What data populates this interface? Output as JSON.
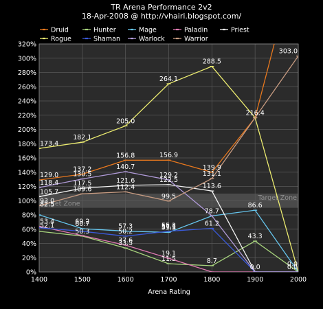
{
  "chart_data": {
    "type": "line",
    "title": "TR Arena Performance 2v2",
    "subtitle": "18-Apr-2008 @ http://vhairi.blogspot.com/",
    "xlabel": "Arena Rating",
    "ylabel": "",
    "x": [
      1400,
      1500,
      1600,
      1700,
      1800,
      1900,
      2000
    ],
    "xlim": [
      1400,
      2000
    ],
    "ylim": [
      0,
      320
    ],
    "yticks": [
      "0%",
      "20%",
      "40%",
      "60%",
      "80%",
      "100%",
      "120%",
      "140%",
      "160%",
      "180%",
      "200%",
      "220%",
      "240%",
      "260%",
      "280%",
      "300%",
      "320%"
    ],
    "xticks": [
      "1400",
      "1500",
      "1600",
      "1700",
      "1800",
      "1900",
      "2000"
    ],
    "grid": true,
    "legend_placement": "top",
    "target_zone": {
      "from": 90,
      "to": 110,
      "label_left": "Target Zone",
      "label_right": "Target Zone"
    },
    "series": [
      {
        "name": "Druid",
        "color": "#e8781e",
        "values": [
          129.0,
          137.2,
          156.8,
          156.9,
          139.9,
          216.4,
          450.0
        ],
        "labels": [
          "129.0",
          "137.2",
          "156.8",
          "156.9",
          "139.9",
          "",
          ""
        ]
      },
      {
        "name": "Hunter",
        "color": "#a6d27c",
        "values": [
          57.0,
          50.3,
          33.5,
          11.5,
          8.7,
          43.3,
          0.0
        ],
        "labels": [
          "",
          "50.3",
          "33.5",
          "11.5",
          "8.7",
          "43.3",
          ""
        ]
      },
      {
        "name": "Mage",
        "color": "#66c6ee",
        "values": [
          80.0,
          60.7,
          57.3,
          55.5,
          78.7,
          86.6,
          0.0
        ],
        "labels": [
          "",
          "60.7",
          "57.3",
          "55.5",
          "78.7",
          "86.6",
          ""
        ]
      },
      {
        "name": "Paladin",
        "color": "#e07ab2",
        "values": [
          64.0,
          51.0,
          37.6,
          19.1,
          0.0,
          0.0,
          0.0
        ],
        "labels": [
          "",
          "",
          "37.6",
          "19.1",
          "",
          "",
          ""
        ]
      },
      {
        "name": "Priest",
        "color": "#f2f2f2",
        "values": [
          105.7,
          117.5,
          121.6,
          122.5,
          113.6,
          0.0,
          0.0
        ],
        "labels": [
          "105.7",
          "117.5",
          "121.6",
          "122.5",
          "113.6",
          "",
          ""
        ]
      },
      {
        "name": "Rogue",
        "color": "#ecec70",
        "values": [
          173.4,
          182.1,
          205.0,
          264.1,
          288.5,
          216.4,
          0.0
        ],
        "labels": [
          "173.4",
          "182.1",
          "205.0",
          "264.1",
          "288.5",
          "216.4",
          "0.0"
        ]
      },
      {
        "name": "Shaman",
        "color": "#3a5ad8",
        "values": [
          62.0,
          57.0,
          50.2,
          57.1,
          61.2,
          0.0,
          0.0
        ],
        "labels": [
          "",
          "",
          "50.2",
          "57.1",
          "61.2",
          "0.0",
          ""
        ]
      },
      {
        "name": "Warlock",
        "color": "#b09ad8",
        "values": [
          118.4,
          130.5,
          140.7,
          129.2,
          78.7,
          0.0,
          0.0
        ],
        "labels": [
          "118.4",
          "130.5",
          "140.7",
          "129.2",
          "",
          "",
          ""
        ]
      },
      {
        "name": "Warrior",
        "color": "#c89c82",
        "values": [
          93.0,
          109.6,
          112.4,
          99.5,
          131.1,
          216.4,
          303.0
        ],
        "labels": [
          "93.0",
          "109.6",
          "112.4",
          "99.5",
          "131.1",
          "",
          "303.0"
        ]
      }
    ],
    "extra_labels": [
      {
        "text": "82.5",
        "x": 1400,
        "y": 92
      },
      {
        "text": "53.4",
        "x": 1400,
        "y": 68
      },
      {
        "text": "52.1",
        "x": 1400,
        "y": 62
      },
      {
        "text": "69.2",
        "x": 1500,
        "y": 68
      },
      {
        "text": "55.3",
        "x": 1700,
        "y": 62
      },
      {
        "text": "0.0",
        "x": 2000,
        "y": 8
      }
    ]
  }
}
